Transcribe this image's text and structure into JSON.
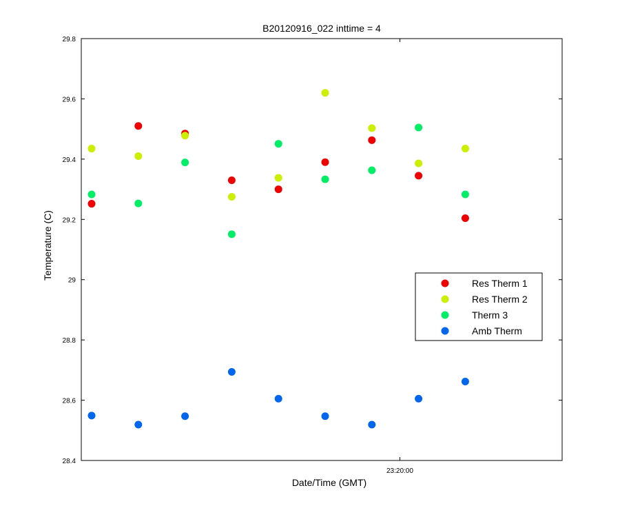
{
  "chart_data": {
    "type": "scatter",
    "title": "B20120916_022 inttime = 4",
    "xlabel": "Date/Time (GMT)",
    "ylabel": "Temperature (C)",
    "ylim": [
      28.4,
      29.8
    ],
    "yticks": [
      "28.4",
      "28.6",
      "28.8",
      "29",
      "29.2",
      "29.4",
      "29.6",
      "29.8"
    ],
    "xlim": [
      0,
      10.3
    ],
    "xtick_labels": [
      {
        "x": 6.6,
        "label": "23:20:00"
      }
    ],
    "grid": false,
    "legend_position": "right",
    "x": [
      0,
      1,
      2,
      3,
      4,
      5,
      6,
      7,
      8
    ],
    "series": [
      {
        "name": "Res Therm 1",
        "color": "#ee0000",
        "values": [
          29.252,
          29.51,
          29.485,
          29.33,
          29.3,
          29.39,
          29.463,
          29.345,
          29.204
        ]
      },
      {
        "name": "Res Therm 2",
        "color": "#ccee00",
        "values": [
          29.435,
          29.41,
          29.478,
          29.275,
          29.338,
          29.62,
          29.503,
          29.386,
          29.435
        ]
      },
      {
        "name": "Therm 3",
        "color": "#00ee66",
        "values": [
          29.283,
          29.253,
          29.389,
          29.151,
          29.451,
          29.333,
          29.363,
          29.505,
          29.283
        ]
      },
      {
        "name": "Amb Therm",
        "color": "#0066ee",
        "values": [
          28.549,
          28.519,
          28.547,
          28.694,
          28.605,
          28.547,
          28.519,
          28.605,
          28.662
        ]
      }
    ]
  }
}
